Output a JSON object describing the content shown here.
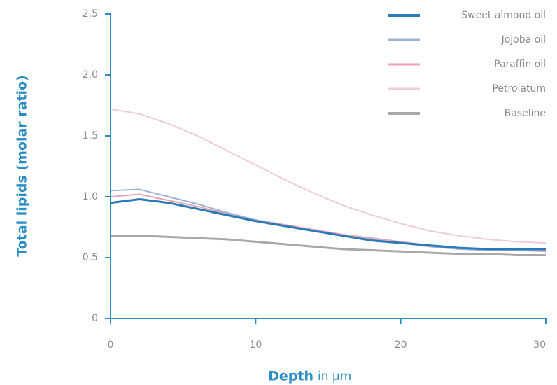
{
  "chart_data": {
    "type": "line",
    "ylabel": "Total lipids (molar ratio)",
    "xlabel": "Depth",
    "xlabel_unit": "in µm",
    "x": [
      0,
      2,
      4,
      6,
      8,
      10,
      12,
      14,
      16,
      18,
      20,
      22,
      24,
      26,
      28,
      30
    ],
    "series": [
      {
        "name": "Sweet almond oil",
        "color": "#2a7ab8",
        "width": 3,
        "values": [
          0.95,
          0.98,
          0.95,
          0.9,
          0.85,
          0.8,
          0.76,
          0.72,
          0.68,
          0.64,
          0.62,
          0.6,
          0.58,
          0.57,
          0.57,
          0.57
        ]
      },
      {
        "name": "Jojoba oil",
        "color": "#9db2d2",
        "width": 2,
        "values": [
          1.05,
          1.06,
          1.0,
          0.94,
          0.87,
          0.81,
          0.76,
          0.72,
          0.68,
          0.65,
          0.62,
          0.59,
          0.57,
          0.56,
          0.56,
          0.56
        ]
      },
      {
        "name": "Paraffin oil",
        "color": "#e9a3b3",
        "width": 2,
        "values": [
          1.0,
          1.02,
          0.97,
          0.92,
          0.86,
          0.81,
          0.77,
          0.73,
          0.69,
          0.66,
          0.63,
          0.6,
          0.58,
          0.57,
          0.56,
          0.55
        ]
      },
      {
        "name": "Petrolatum",
        "color": "#f2cad3",
        "width": 2,
        "values": [
          1.72,
          1.68,
          1.6,
          1.5,
          1.38,
          1.26,
          1.14,
          1.03,
          0.93,
          0.85,
          0.78,
          0.72,
          0.68,
          0.65,
          0.63,
          0.62
        ]
      },
      {
        "name": "Baseline",
        "color": "#a8a8a8",
        "width": 3,
        "values": [
          0.68,
          0.68,
          0.67,
          0.66,
          0.65,
          0.63,
          0.61,
          0.59,
          0.57,
          0.56,
          0.55,
          0.54,
          0.53,
          0.53,
          0.52,
          0.52
        ]
      }
    ],
    "xlim": [
      0,
      30
    ],
    "xticks": [
      0,
      10,
      20,
      30
    ],
    "ylim": [
      0,
      2.5
    ],
    "yticks": [
      0,
      0.5,
      {
        "value": 1,
        "label": "1.0"
      },
      1.5,
      {
        "value": 2,
        "label": "2.0"
      },
      2.5
    ],
    "legend": "top-right",
    "axis_color": "#2a8cc4"
  }
}
